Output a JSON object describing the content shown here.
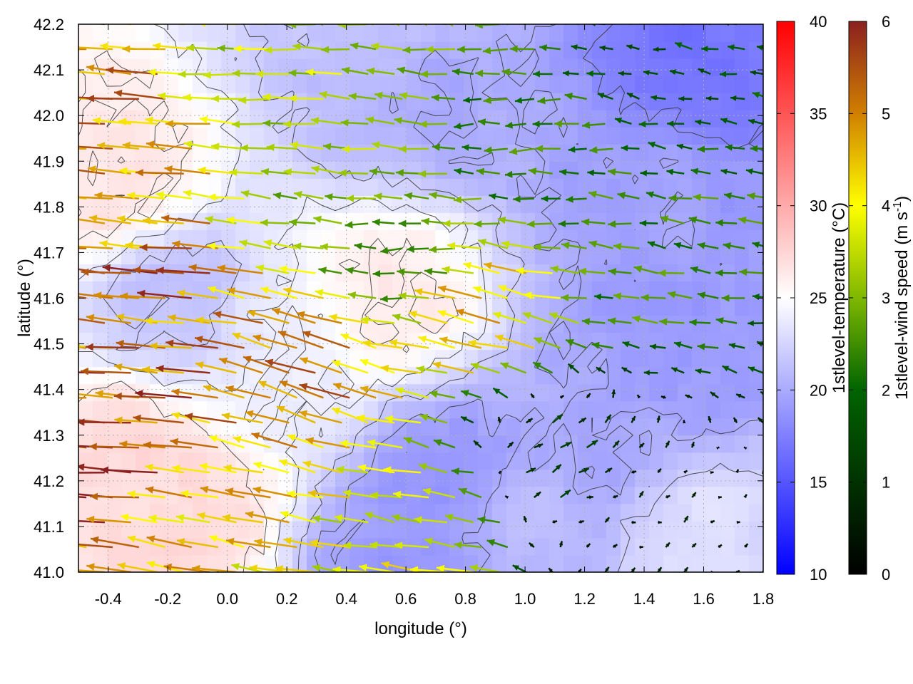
{
  "chart_data": {
    "type": "heatmap",
    "subtype": "temperature field with wind vectors and contour lines",
    "title": "",
    "xlabel": "longitude (°)",
    "ylabel": "latitude (°)",
    "xlim": [
      -0.5,
      1.8
    ],
    "ylim": [
      41.0,
      42.2
    ],
    "x_ticks": [
      "-0.4",
      "-0.2",
      "0.0",
      "0.2",
      "0.4",
      "0.6",
      "0.8",
      "1.0",
      "1.2",
      "1.4",
      "1.6",
      "1.8"
    ],
    "x_tick_values": [
      -0.4,
      -0.2,
      0.0,
      0.2,
      0.4,
      0.6,
      0.8,
      1.0,
      1.2,
      1.4,
      1.6,
      1.8
    ],
    "y_ticks": [
      "41.0",
      "41.1",
      "41.2",
      "41.3",
      "41.4",
      "41.5",
      "41.6",
      "41.7",
      "41.8",
      "41.9",
      "42.0",
      "42.1",
      "42.2"
    ],
    "y_tick_values": [
      41.0,
      41.1,
      41.2,
      41.3,
      41.4,
      41.5,
      41.6,
      41.7,
      41.8,
      41.9,
      42.0,
      42.1,
      42.2
    ],
    "grid": true,
    "colorbars": [
      {
        "label": "1stlevel-temperature (°C)",
        "range": [
          10,
          40
        ],
        "ticks": [
          "10",
          "15",
          "20",
          "25",
          "30",
          "35",
          "40"
        ],
        "tick_values": [
          10,
          15,
          20,
          25,
          30,
          35,
          40
        ],
        "colors": [
          "#0000ff",
          "#ffffff",
          "#ff0000"
        ]
      },
      {
        "label_main": "1stlevel-wind speed (m s",
        "label_sup": "-1",
        "label_end": ")",
        "range": [
          0,
          6
        ],
        "ticks": [
          "0",
          "1",
          "2",
          "3",
          "4",
          "5",
          "6"
        ],
        "tick_values": [
          0,
          1,
          2,
          3,
          4,
          5,
          6
        ],
        "colors": [
          "#000000",
          "#006400",
          "#7fb800",
          "#ffff00",
          "#d08000",
          "#8b2020"
        ]
      }
    ],
    "temperature_regions": [
      {
        "lon": -0.35,
        "lat": 41.25,
        "t": 27
      },
      {
        "lon": -0.15,
        "lat": 41.15,
        "t": 27
      },
      {
        "lon": -0.4,
        "lat": 41.85,
        "t": 26.5
      },
      {
        "lon": 0.55,
        "lat": 41.6,
        "t": 26
      },
      {
        "lon": 0.2,
        "lat": 41.45,
        "t": 24
      },
      {
        "lon": 0.6,
        "lat": 41.0,
        "t": 19
      },
      {
        "lon": 0.75,
        "lat": 41.2,
        "t": 19
      },
      {
        "lon": 1.2,
        "lat": 41.3,
        "t": 20
      },
      {
        "lon": 1.5,
        "lat": 41.5,
        "t": 19
      },
      {
        "lon": 1.6,
        "lat": 42.15,
        "t": 17
      },
      {
        "lon": 0.7,
        "lat": 42.05,
        "t": 20
      },
      {
        "lon": 1.4,
        "lat": 41.8,
        "t": 19.5
      },
      {
        "lon": -0.2,
        "lat": 41.6,
        "t": 21.5
      },
      {
        "lon": 0.5,
        "lat": 42.15,
        "t": 21.5
      },
      {
        "lon": 1.0,
        "lat": 41.1,
        "t": 21
      },
      {
        "lon": 1.6,
        "lat": 41.05,
        "t": 23
      }
    ],
    "wind_regions": [
      {
        "lon": -0.4,
        "lat": 41.95,
        "u": -4.6,
        "v": 0.4
      },
      {
        "lon": -0.4,
        "lat": 41.3,
        "u": -5.5,
        "v": 0.3
      },
      {
        "lon": -0.2,
        "lat": 41.5,
        "u": -5.0,
        "v": 0.5
      },
      {
        "lon": 0.3,
        "lat": 41.45,
        "u": -4.5,
        "v": 1.5
      },
      {
        "lon": 0.0,
        "lat": 41.1,
        "u": -4.0,
        "v": 0.8
      },
      {
        "lon": 0.6,
        "lat": 41.7,
        "u": -2.4,
        "v": 0.0
      },
      {
        "lon": 0.4,
        "lat": 41.9,
        "u": -3.0,
        "v": 0.3
      },
      {
        "lon": 0.3,
        "lat": 42.15,
        "u": -3.3,
        "v": 0.2
      },
      {
        "lon": 0.9,
        "lat": 41.55,
        "u": -4.0,
        "v": 1.0
      },
      {
        "lon": 1.0,
        "lat": 41.95,
        "u": -2.2,
        "v": 0.0
      },
      {
        "lon": 1.4,
        "lat": 41.7,
        "u": -2.3,
        "v": 0.3
      },
      {
        "lon": 1.5,
        "lat": 42.15,
        "u": -1.5,
        "v": 0.3
      },
      {
        "lon": 1.4,
        "lat": 41.1,
        "u": 0.4,
        "v": 0.3
      },
      {
        "lon": 1.1,
        "lat": 41.25,
        "u": 1.0,
        "v": 0.5
      },
      {
        "lon": 0.7,
        "lat": 41.1,
        "u": -3.5,
        "v": 0.6
      }
    ],
    "contour_levels": [
      18,
      20,
      22,
      24,
      26
    ]
  }
}
